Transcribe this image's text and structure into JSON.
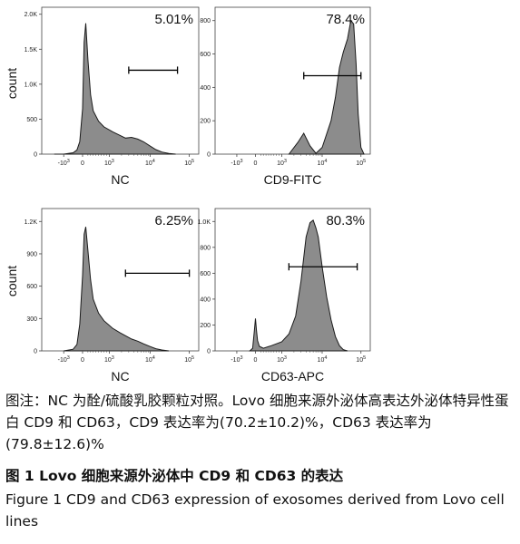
{
  "chart_data": [
    {
      "type": "area",
      "panel": "top-left",
      "xlabel": "NC",
      "ylabel": "count",
      "y_ticks": [
        "2.0K",
        "1.5K",
        "1.0K",
        "500",
        "0"
      ],
      "y_tick_values": [
        2000,
        1500,
        1000,
        500,
        0
      ],
      "ylim": [
        0,
        2100
      ],
      "x_ticks": [
        {
          "base": "10",
          "exp": "3",
          "neg": true
        },
        {
          "base": "0"
        },
        {
          "base": "10",
          "exp": "3"
        },
        {
          "base": "10",
          "exp": "4"
        },
        {
          "base": "10",
          "exp": "5"
        }
      ],
      "x_tick_values": [
        -1000,
        0,
        1000,
        10000,
        100000
      ],
      "gate_label": "5.01%",
      "gate_range": [
        3000,
        50000
      ],
      "gate_level": 1200,
      "x": [
        -1500,
        -1000,
        -500,
        -300,
        -150,
        0,
        60,
        120,
        200,
        300,
        400,
        600,
        800,
        1200,
        1800,
        2500,
        3500,
        5000,
        7000,
        10000,
        14000,
        20000,
        30000,
        45000
      ],
      "y": [
        0,
        0,
        20,
        60,
        180,
        650,
        1600,
        1870,
        1350,
        850,
        620,
        470,
        390,
        320,
        270,
        230,
        240,
        215,
        175,
        115,
        65,
        30,
        10,
        0
      ]
    },
    {
      "type": "area",
      "panel": "top-right",
      "xlabel": "CD9-FITC",
      "ylabel": "",
      "y_ticks": [
        "800",
        "600",
        "400",
        "200",
        "0"
      ],
      "y_tick_values": [
        800,
        600,
        400,
        200,
        0
      ],
      "ylim": [
        0,
        880
      ],
      "x_ticks": [
        {
          "base": "10",
          "exp": "3",
          "neg": true
        },
        {
          "base": "0"
        },
        {
          "base": "10",
          "exp": "3"
        },
        {
          "base": "10",
          "exp": "4"
        },
        {
          "base": "10",
          "exp": "5"
        }
      ],
      "x_tick_values": [
        -1000,
        0,
        1000,
        10000,
        100000
      ],
      "gate_label": "78.4%",
      "gate_range": [
        3500,
        100000
      ],
      "gate_level": 470,
      "x": [
        1500,
        2500,
        3500,
        5000,
        7000,
        10000,
        13000,
        17000,
        22000,
        28000,
        35000,
        45000,
        55000,
        65000,
        75000,
        85000,
        100000,
        120000
      ],
      "y": [
        0,
        70,
        125,
        50,
        5,
        40,
        120,
        200,
        340,
        520,
        610,
        690,
        800,
        780,
        540,
        240,
        40,
        0
      ]
    },
    {
      "type": "area",
      "panel": "bottom-left",
      "xlabel": "NC",
      "ylabel": "count",
      "y_ticks": [
        "1.2K",
        "900",
        "600",
        "300",
        "0"
      ],
      "y_tick_values": [
        1200,
        900,
        600,
        300,
        0
      ],
      "ylim": [
        0,
        1320
      ],
      "x_ticks": [
        {
          "base": "10",
          "exp": "3",
          "neg": true
        },
        {
          "base": "0"
        },
        {
          "base": "10",
          "exp": "3"
        },
        {
          "base": "10",
          "exp": "4"
        },
        {
          "base": "10",
          "exp": "5"
        }
      ],
      "x_tick_values": [
        -1000,
        0,
        1000,
        10000,
        100000
      ],
      "gate_label": "6.25%",
      "gate_range": [
        2500,
        100000
      ],
      "gate_level": 720,
      "x": [
        -1000,
        -500,
        -300,
        -150,
        0,
        60,
        120,
        200,
        300,
        400,
        600,
        800,
        1200,
        1800,
        2500,
        3500,
        5000,
        7000,
        10000,
        14000,
        20000,
        30000
      ],
      "y": [
        0,
        15,
        60,
        250,
        700,
        1080,
        1150,
        930,
        660,
        480,
        350,
        280,
        210,
        170,
        140,
        110,
        90,
        65,
        40,
        20,
        8,
        0
      ]
    },
    {
      "type": "area",
      "panel": "bottom-right",
      "xlabel": "CD63-APC",
      "ylabel": "",
      "y_ticks": [
        "1.0K",
        "800",
        "600",
        "400",
        "200",
        "0"
      ],
      "y_tick_values": [
        1000,
        800,
        600,
        400,
        200,
        0
      ],
      "ylim": [
        0,
        1100
      ],
      "x_ticks": [
        {
          "base": "10",
          "exp": "3",
          "neg": true
        },
        {
          "base": "0"
        },
        {
          "base": "10",
          "exp": "3"
        },
        {
          "base": "10",
          "exp": "4"
        },
        {
          "base": "10",
          "exp": "5"
        }
      ],
      "x_tick_values": [
        -1000,
        0,
        1000,
        10000,
        100000
      ],
      "gate_label": "80.3%",
      "gate_range": [
        1500,
        80000
      ],
      "gate_level": 650,
      "x": [
        -300,
        -150,
        -60,
        0,
        40,
        80,
        150,
        300,
        600,
        1000,
        1500,
        2200,
        3000,
        4000,
        5000,
        6000,
        7000,
        8000,
        10000,
        13000,
        17000,
        22000,
        28000,
        35000,
        45000
      ],
      "y": [
        0,
        20,
        150,
        250,
        160,
        80,
        35,
        20,
        40,
        70,
        130,
        270,
        540,
        880,
        990,
        1010,
        950,
        880,
        650,
        420,
        240,
        110,
        40,
        10,
        0
      ]
    }
  ],
  "caption": {
    "note": "图注：NC 为酫/硫酸乳胶颗粒对照。Lovo 细胞来源外泌体高表达外泌体特异性蛋白 CD9 和 CD63，CD9 表达率为(70.2±10.2)%，CD63 表达率为(79.8±12.6)%",
    "figure_cn": "图 1   Lovo 细胞来源外泌体中 CD9 和 CD63 的表达",
    "figure_en": "Figure 1    CD9 and CD63 expression of exosomes derived from Lovo cell lines"
  },
  "colors": {
    "fill": "#8c8c8c",
    "line": "#1a1a1a",
    "axis": "#444444"
  }
}
